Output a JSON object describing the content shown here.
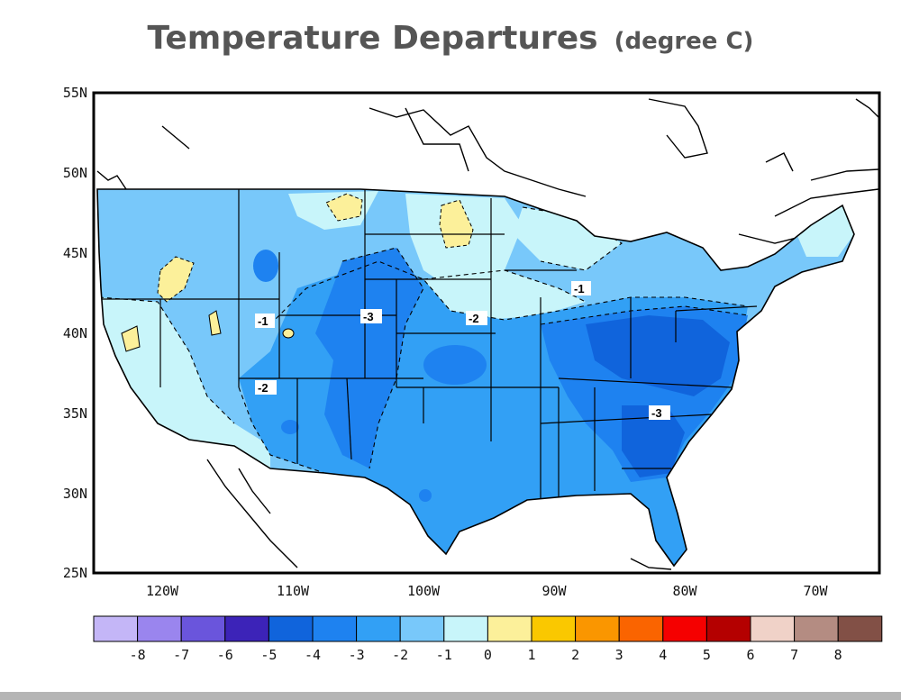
{
  "title": "Temperature Departures",
  "unit": "(degree C)",
  "axes": {
    "lat_labels": [
      "55N",
      "50N",
      "45N",
      "40N",
      "35N",
      "30N",
      "25N"
    ],
    "lon_labels": [
      "120W",
      "110W",
      "100W",
      "90W",
      "80W",
      "70W"
    ]
  },
  "colorbar": {
    "labels": [
      "-8",
      "-7",
      "-6",
      "-5",
      "-4",
      "-3",
      "-2",
      "-1",
      "0",
      "1",
      "2",
      "3",
      "4",
      "5",
      "6",
      "7",
      "8"
    ],
    "colors": [
      "#c4b6f7",
      "#9a85ee",
      "#6a55dc",
      "#3c23b8",
      "#1064dc",
      "#1e82f0",
      "#32a0f5",
      "#78c8fa",
      "#c8f5fa",
      "#fcf09a",
      "#fac800",
      "#fa9600",
      "#fa6400",
      "#f50000",
      "#b40000",
      "#f0d2c8",
      "#b48c82",
      "#825046"
    ]
  },
  "contour_labels": [
    "-1",
    "-3",
    "-2",
    "-2",
    "-1",
    "-3"
  ],
  "colors": {
    "land_base": "#78c8fa",
    "land_light": "#c8f5fa",
    "land_mid": "#32a0f5",
    "land_dark": "#1e82f0",
    "land_darker": "#1064dc",
    "warm": "#fcf09a",
    "border": "#000000"
  }
}
